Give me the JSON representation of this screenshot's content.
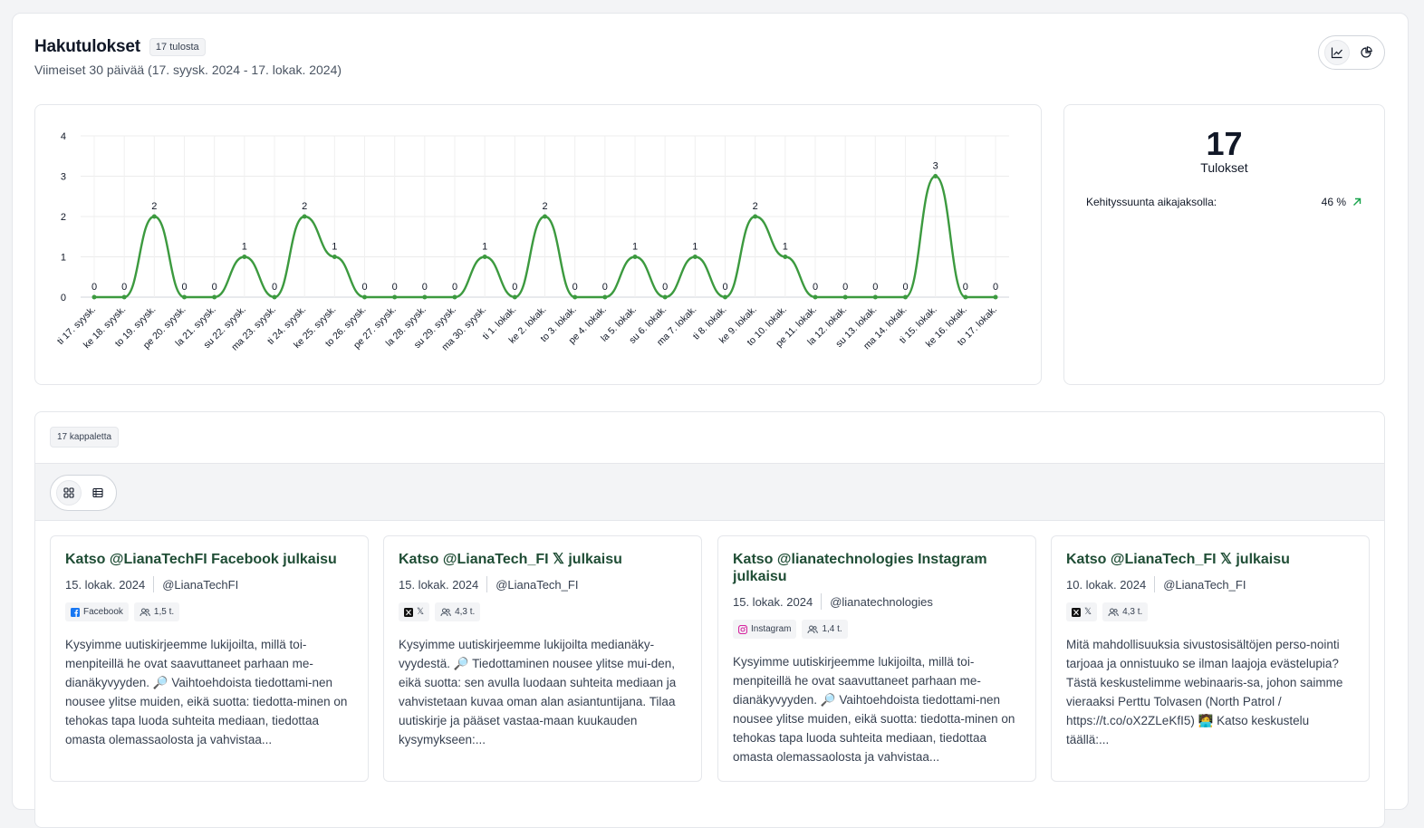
{
  "header": {
    "title": "Hakutulokset",
    "count_badge": "17 tulosta",
    "subtitle": "Viimeiset 30 päivää (17. syysk. 2024 - 17. lokak. 2024)",
    "view_toggle": [
      {
        "icon": "line-chart-icon",
        "active": true
      },
      {
        "icon": "pie-chart-icon",
        "active": false
      }
    ]
  },
  "chart_data": {
    "type": "line",
    "categories": [
      "ti 17. syysk.",
      "ke 18. syysk.",
      "to 19. syysk.",
      "pe 20. syysk.",
      "la 21. syysk.",
      "su 22. syysk.",
      "ma 23. syysk.",
      "ti 24. syysk.",
      "ke 25. syysk.",
      "to 26. syysk.",
      "pe 27. syysk.",
      "la 28. syysk.",
      "su 29. syysk.",
      "ma 30. syysk.",
      "ti 1. lokak.",
      "ke 2. lokak.",
      "to 3. lokak.",
      "pe 4. lokak.",
      "la 5. lokak.",
      "su 6. lokak.",
      "ma 7. lokak.",
      "ti 8. lokak.",
      "ke 9. lokak.",
      "to 10. lokak.",
      "pe 11. lokak.",
      "la 12. lokak.",
      "su 13. lokak.",
      "ma 14. lokak.",
      "ti 15. lokak.",
      "ke 16. lokak.",
      "to 17. lokak."
    ],
    "values": [
      0,
      0,
      2,
      0,
      0,
      1,
      0,
      2,
      1,
      0,
      0,
      0,
      0,
      1,
      0,
      2,
      0,
      0,
      1,
      0,
      1,
      0,
      2,
      1,
      0,
      0,
      0,
      0,
      3,
      0,
      0
    ],
    "ylim": [
      0,
      4
    ],
    "yticks": [
      "0",
      "1",
      "2",
      "3",
      "4"
    ],
    "grid": true,
    "color": "#3c9a3f",
    "data_labels": true
  },
  "stats": {
    "total": "17",
    "total_label": "Tulokset",
    "trend_label": "Kehityssuunta aikajaksolla:",
    "trend_value": "46 %",
    "trend_icon": "arrow-up-right-icon",
    "trend_color": "#16a34a"
  },
  "results": {
    "count_badge": "17 kappaletta",
    "layout_toggle": [
      {
        "icon": "grid-icon",
        "active": true
      },
      {
        "icon": "table-icon",
        "active": false
      }
    ],
    "cards": [
      {
        "title": "Katso @LianaTechFI Facebook julkaisu",
        "date": "15. lokak. 2024",
        "handle": "@LianaTechFI",
        "platform": "Facebook",
        "platform_icon": "facebook-icon",
        "reach": "1,5 t.",
        "text": "Kysyimme uutiskirjeemme lukijoilta, millä toi-menpiteillä he ovat saavuttaneet parhaan me-dianäkyvyyden. 🔎 Vaihtoehdoista tiedottami-nen nousee ylitse muiden, eikä suotta: tiedotta-minen on tehokas tapa luoda suhteita mediaan, tiedottaa omasta olemassaolosta ja vahvistaa..."
      },
      {
        "title": "Katso @LianaTech_FI 𝕏 julkaisu",
        "date": "15. lokak. 2024",
        "handle": "@LianaTech_FI",
        "platform": "𝕏",
        "platform_icon": "x-icon",
        "reach": "4,3 t.",
        "text": "Kysyimme uutiskirjeemme lukijoilta medianäky-vyydestä. 🔎 Tiedottaminen nousee ylitse mui-den, eikä suotta: sen avulla luodaan suhteita mediaan ja vahvistetaan kuvaa oman alan asiantuntijana. Tilaa uutiskirje ja pääset vastaa-maan kuukauden kysymykseen:..."
      },
      {
        "title": "Katso @lianatechnologies Instagram julkaisu",
        "date": "15. lokak. 2024",
        "handle": "@lianatechnologies",
        "platform": "Instagram",
        "platform_icon": "instagram-icon",
        "reach": "1,4 t.",
        "text": "Kysyimme uutiskirjeemme lukijoilta, millä toi-menpiteillä he ovat saavuttaneet parhaan me-dianäkyvyyden. 🔎 Vaihtoehdoista tiedottami-nen nousee ylitse muiden, eikä suotta: tiedotta-minen on tehokas tapa luoda suhteita mediaan, tiedottaa omasta olemassaolosta ja vahvistaa..."
      },
      {
        "title": "Katso @LianaTech_FI 𝕏 julkaisu",
        "date": "10. lokak. 2024",
        "handle": "@LianaTech_FI",
        "platform": "𝕏",
        "platform_icon": "x-icon",
        "reach": "4,3 t.",
        "text": "Mitä mahdollisuuksia sivustosisältöjen perso-nointi tarjoaa ja onnistuuko se ilman laajoja evästelupia? Tästä keskustelimme webinaaris-sa, johon saimme vieraaksi Perttu Tolvasen (North Patrol / https://t.co/oX2ZLeKfI5) 🧑‍💻 Katso keskustelu täällä:..."
      }
    ]
  }
}
